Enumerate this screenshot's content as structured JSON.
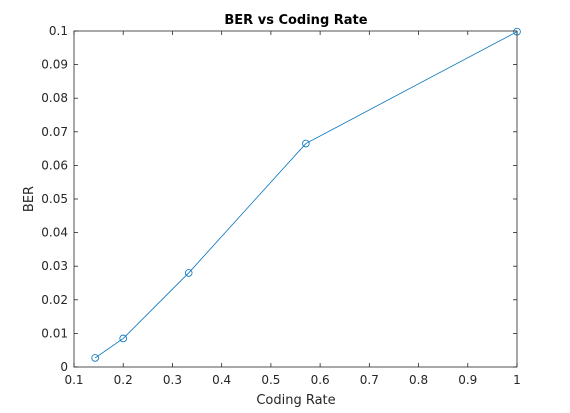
{
  "chart_data": {
    "type": "line",
    "title": "BER vs Coding Rate",
    "xlabel": "Coding Rate",
    "ylabel": "BER",
    "xlim": [
      0.1,
      1
    ],
    "ylim": [
      0,
      0.1
    ],
    "grid": false,
    "x_ticks": [
      "0.1",
      "0.2",
      "0.3",
      "0.4",
      "0.5",
      "0.6",
      "0.7",
      "0.8",
      "0.9",
      "1"
    ],
    "y_ticks": [
      "0",
      "0.01",
      "0.02",
      "0.03",
      "0.04",
      "0.05",
      "0.06",
      "0.07",
      "0.08",
      "0.09",
      "0.1"
    ],
    "series": [
      {
        "x": [
          0.143,
          0.2,
          0.333,
          0.571,
          1.0
        ],
        "y": [
          0.0027,
          0.0085,
          0.028,
          0.0665,
          0.0998
        ],
        "color": "#0072BD",
        "marker": "circle"
      }
    ]
  }
}
